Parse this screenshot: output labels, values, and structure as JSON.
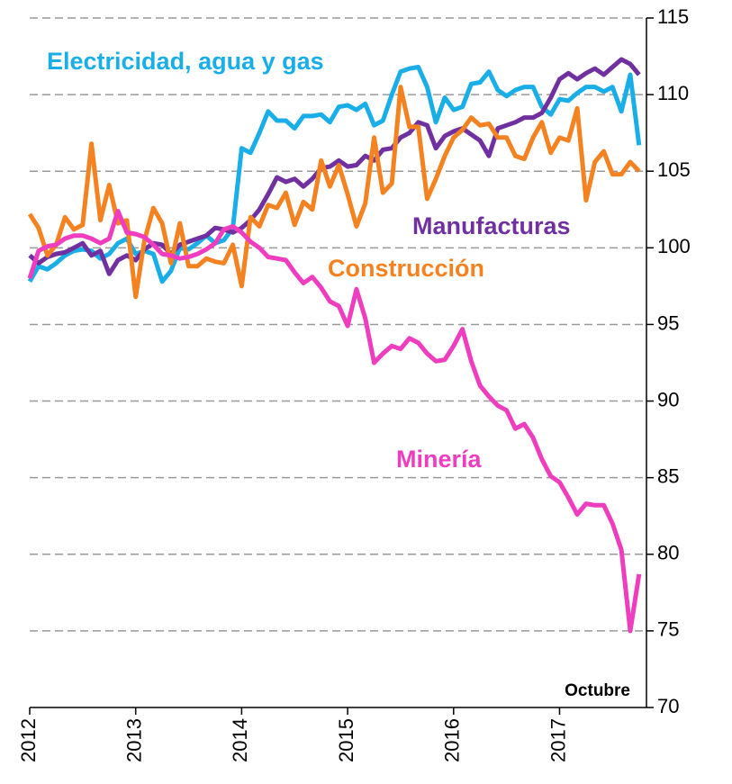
{
  "chart_data": {
    "type": "line",
    "annotation": "Octubre",
    "x": [
      2012,
      2012.083,
      2012.167,
      2012.25,
      2012.333,
      2012.417,
      2012.5,
      2012.583,
      2012.667,
      2012.75,
      2012.833,
      2012.917,
      2013,
      2013.083,
      2013.167,
      2013.25,
      2013.333,
      2013.417,
      2013.5,
      2013.583,
      2013.667,
      2013.75,
      2013.833,
      2013.917,
      2014,
      2014.083,
      2014.167,
      2014.25,
      2014.333,
      2014.417,
      2014.5,
      2014.583,
      2014.667,
      2014.75,
      2014.833,
      2014.917,
      2015,
      2015.083,
      2015.167,
      2015.25,
      2015.333,
      2015.417,
      2015.5,
      2015.583,
      2015.667,
      2015.75,
      2015.833,
      2015.917,
      2016,
      2016.083,
      2016.167,
      2016.25,
      2016.333,
      2016.417,
      2016.5,
      2016.583,
      2016.667,
      2016.75,
      2016.833,
      2016.917,
      2017,
      2017.083,
      2017.167,
      2017.25,
      2017.333,
      2017.417,
      2017.5,
      2017.583,
      2017.667,
      2017.75
    ],
    "series": [
      {
        "name": "Electricidad, agua y gas",
        "color": "#1aaee8",
        "values": [
          97.8,
          98.8,
          98.6,
          99,
          99.5,
          99.8,
          99.9,
          99.8,
          99.3,
          99.6,
          100.3,
          100.6,
          99.6,
          99.8,
          99.6,
          97.8,
          98.5,
          100,
          99.9,
          100.3,
          100.8,
          100.3,
          100.5,
          101.3,
          106.5,
          106.2,
          107.5,
          108.9,
          108.3,
          108.3,
          107.8,
          108.6,
          108.6,
          108.7,
          108.2,
          109.2,
          109.3,
          109,
          109.4,
          108,
          108.3,
          110,
          111.5,
          111.7,
          111.8,
          110.5,
          108.2,
          109.8,
          109,
          109.2,
          110.7,
          110.8,
          111.5,
          110.3,
          109.9,
          110.3,
          110.5,
          110.5,
          109.2,
          108.7,
          109.7,
          109.6,
          110.1,
          110.5,
          110.5,
          110.2,
          110.5,
          108.9,
          111.3,
          106.7
        ]
      },
      {
        "name": "Manufacturas",
        "color": "#7030a0",
        "values": [
          99.5,
          99,
          99.4,
          99.6,
          99.7,
          100,
          100.3,
          99.5,
          99.8,
          98.3,
          99.2,
          99.5,
          99.2,
          99.9,
          100.3,
          100.2,
          99.6,
          100.2,
          100.4,
          100.6,
          100.8,
          101.3,
          101.2,
          101,
          101.3,
          101.8,
          102.5,
          103.5,
          104.6,
          104.3,
          104.5,
          104,
          104.5,
          105.2,
          105.3,
          105.7,
          105.3,
          105.4,
          106,
          105.7,
          106.4,
          106.5,
          107.2,
          107.5,
          108.2,
          108,
          106.5,
          107.3,
          107.6,
          107.8,
          107.4,
          107,
          106,
          107.8,
          108,
          108.2,
          108.5,
          108.5,
          108.8,
          109.8,
          111,
          111.4,
          111,
          111.4,
          111.7,
          111.3,
          111.8,
          112.3,
          112,
          111.3
        ]
      },
      {
        "name": "Construcción",
        "color": "#f58220",
        "values": [
          102.2,
          101.3,
          99.5,
          100.2,
          102,
          101.2,
          101.5,
          106.8,
          101.8,
          104.1,
          101.6,
          101.8,
          96.8,
          100.5,
          102.6,
          101.6,
          99,
          101.6,
          98.8,
          98.8,
          99.3,
          99.1,
          99,
          100.2,
          97.5,
          102,
          101.4,
          102.8,
          102.6,
          103.6,
          101.5,
          103,
          102.5,
          105.7,
          104,
          105.4,
          103.5,
          101.4,
          102.9,
          107.2,
          103.6,
          104.2,
          110.5,
          107.9,
          107.9,
          103.2,
          104.5,
          106,
          107.2,
          107.7,
          108.5,
          108,
          108.1,
          107.2,
          107.2,
          106,
          105.8,
          107.2,
          108.2,
          106.2,
          107.2,
          107,
          109.1,
          103.1,
          105.6,
          106.3,
          104.8,
          104.8,
          105.6,
          105
        ]
      },
      {
        "name": "Minería",
        "color": "#ee3dbf",
        "values": [
          98,
          99.8,
          100.1,
          100.2,
          100.6,
          100.8,
          100.8,
          100.6,
          100.3,
          100.6,
          102.4,
          101,
          100.9,
          100.7,
          100.2,
          99.6,
          99.5,
          99.3,
          99.4,
          99.6,
          99.9,
          100.3,
          101.2,
          101.4,
          101,
          100.4,
          100,
          99.4,
          99.3,
          99.2,
          98.4,
          97.7,
          98.1,
          97.4,
          96.5,
          96.2,
          94.9,
          97.3,
          95.4,
          92.5,
          93.1,
          93.6,
          93.4,
          94.1,
          93.8,
          93.1,
          92.6,
          92.7,
          93.6,
          94.7,
          92.6,
          91,
          90.3,
          89.7,
          89.4,
          88.2,
          88.5,
          87.6,
          86.2,
          85.1,
          84.7,
          83.7,
          82.6,
          83.3,
          83.2,
          83.2,
          82,
          80.3,
          75,
          78.7
        ]
      }
    ],
    "xlim": [
      2012,
      2017.82
    ],
    "xticks": [
      2012,
      2013,
      2014,
      2015,
      2016,
      2017
    ],
    "ylim": [
      70,
      115
    ],
    "yticks": [
      70,
      75,
      80,
      85,
      90,
      95,
      100,
      105,
      110,
      115
    ],
    "grid": true
  }
}
